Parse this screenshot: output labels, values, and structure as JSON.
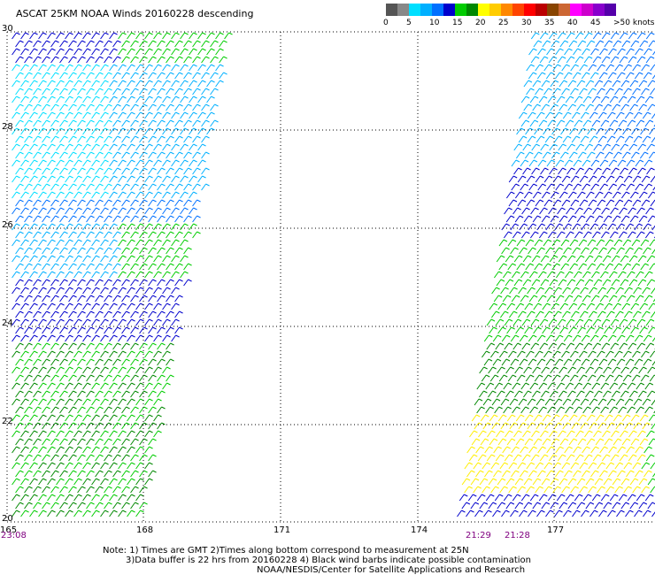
{
  "title": "ASCAT 25KM NOAA Winds 20160228 descending",
  "legend": {
    "colors": [
      "#555555",
      "#888888",
      "#00dfff",
      "#00b0ff",
      "#0070ff",
      "#0000cc",
      "#00cc00",
      "#008800",
      "#ffff00",
      "#ffcc00",
      "#ff8800",
      "#ff4400",
      "#ff0000",
      "#bb0000",
      "#884400",
      "#cc6633",
      "#ff00ff",
      "#cc00cc",
      "#8800cc",
      "#5500aa"
    ],
    "ticks": [
      "0",
      "5",
      "10",
      "15",
      "20",
      "25",
      "30",
      "35",
      "40",
      "45",
      ">50 knots"
    ]
  },
  "axes": {
    "lat_labels": [
      "30",
      "28",
      "26",
      "24",
      "22",
      "20"
    ],
    "lon_labels": [
      "165",
      "168",
      "171",
      "174",
      "177"
    ]
  },
  "pass_times": [
    {
      "label": "23:08",
      "color": "#800080"
    },
    {
      "label": "21:29",
      "color": "#800080"
    },
    {
      "label": "21:28",
      "color": "#800080"
    }
  ],
  "notes": [
    "Note: 1) Times are GMT 2)Times along bottom correspond to measurement at 25N",
    "3)Data buffer is 22 hrs from 20160228 4) Black wind barbs indicate possible contamination",
    "NOAA/NESDIS/Center for Satellite Applications and Research"
  ]
}
